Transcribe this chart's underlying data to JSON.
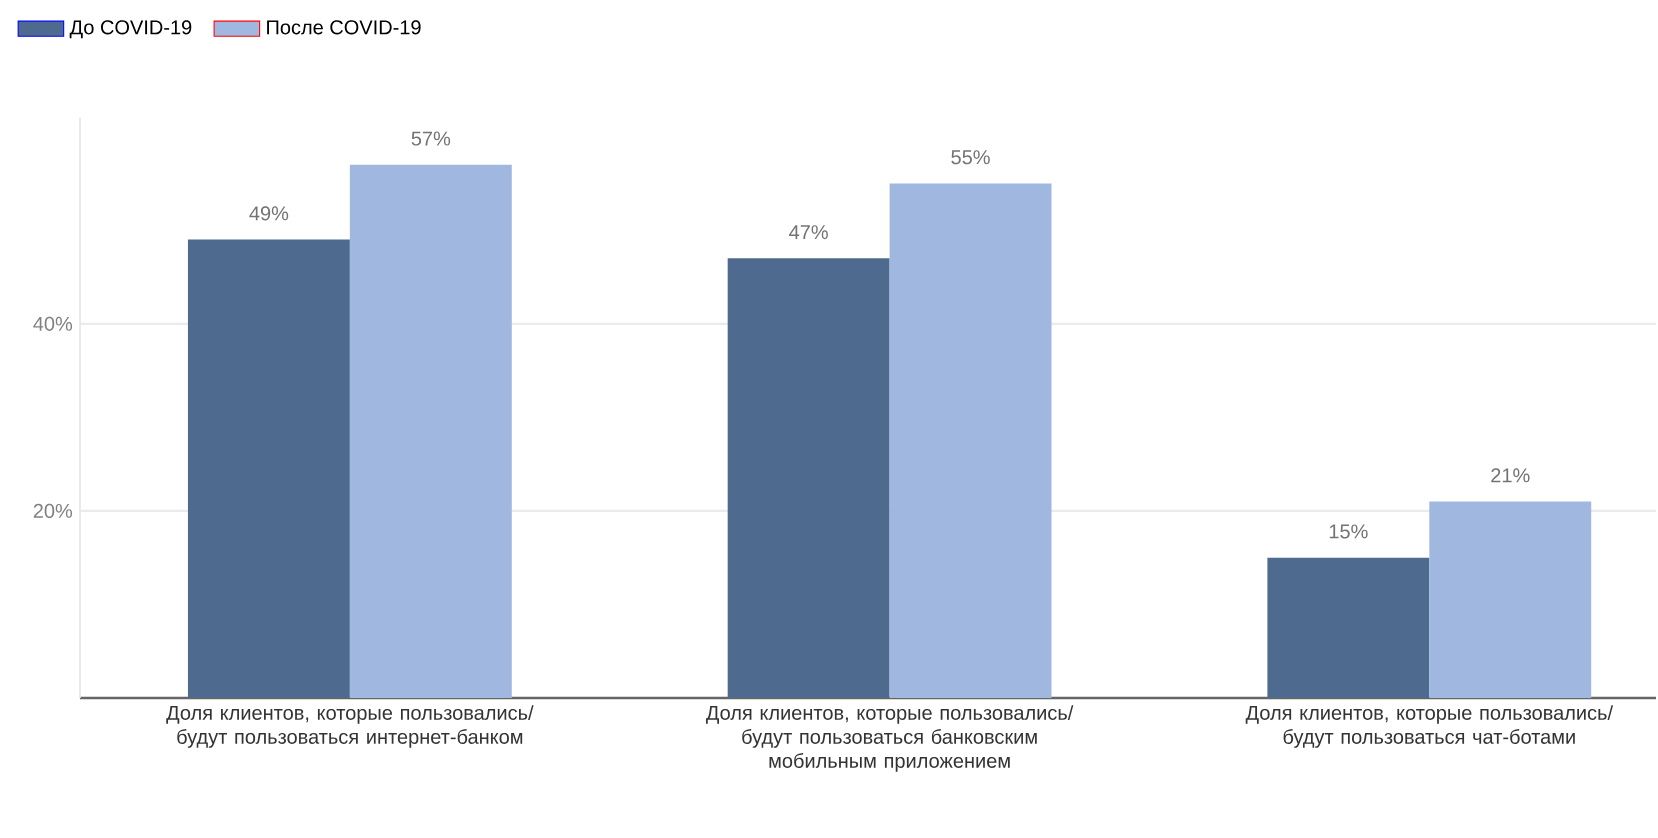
{
  "chart_data": {
    "type": "bar",
    "categories": [
      "Доля клиентов, которые пользовались/ будут пользоваться интернет-банком",
      "Доля клиентов, которые пользовались/ будут пользоваться банковским мобильным приложением",
      "Доля клиентов, которые пользовались/ будут пользоваться чат-ботами"
    ],
    "series": [
      {
        "name": "До COVID-19",
        "color": "#4f6a8f",
        "values": [
          49,
          47,
          15
        ],
        "value_labels": [
          "49%",
          "47%",
          "15%"
        ]
      },
      {
        "name": "После COVID-19",
        "color": "#a0b8e0",
        "values": [
          57,
          55,
          21
        ],
        "value_labels": [
          "57%",
          "55%",
          "21%"
        ]
      }
    ],
    "yticks": [
      {
        "value": 20,
        "label": "20%"
      },
      {
        "value": 40,
        "label": "40%"
      }
    ],
    "ylim": [
      0,
      62
    ],
    "grid": "y",
    "legend": "top left"
  }
}
